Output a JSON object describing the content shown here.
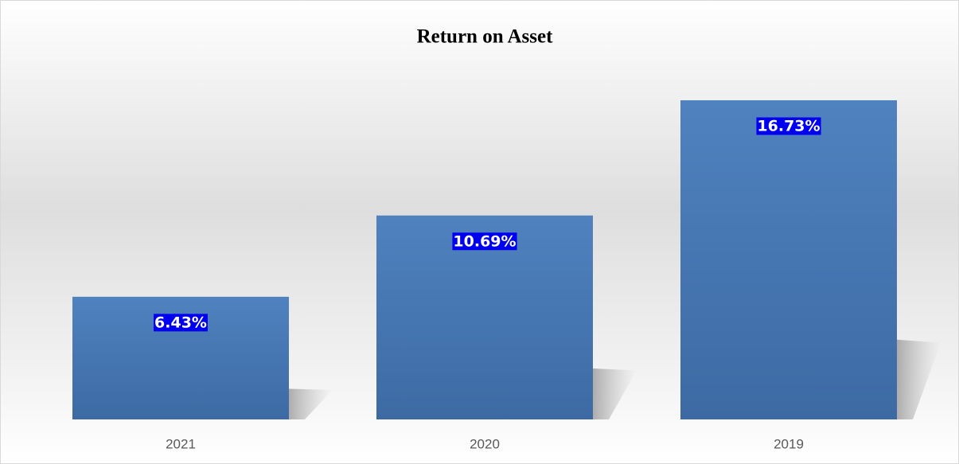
{
  "chart_data": {
    "type": "bar",
    "title": "Return on Asset",
    "categories": [
      "2021",
      "2020",
      "2019"
    ],
    "values": [
      6.43,
      10.69,
      16.73
    ],
    "value_labels": [
      "6.43%",
      "10.69%",
      "16.73%"
    ],
    "color": "#4a7ab5"
  }
}
